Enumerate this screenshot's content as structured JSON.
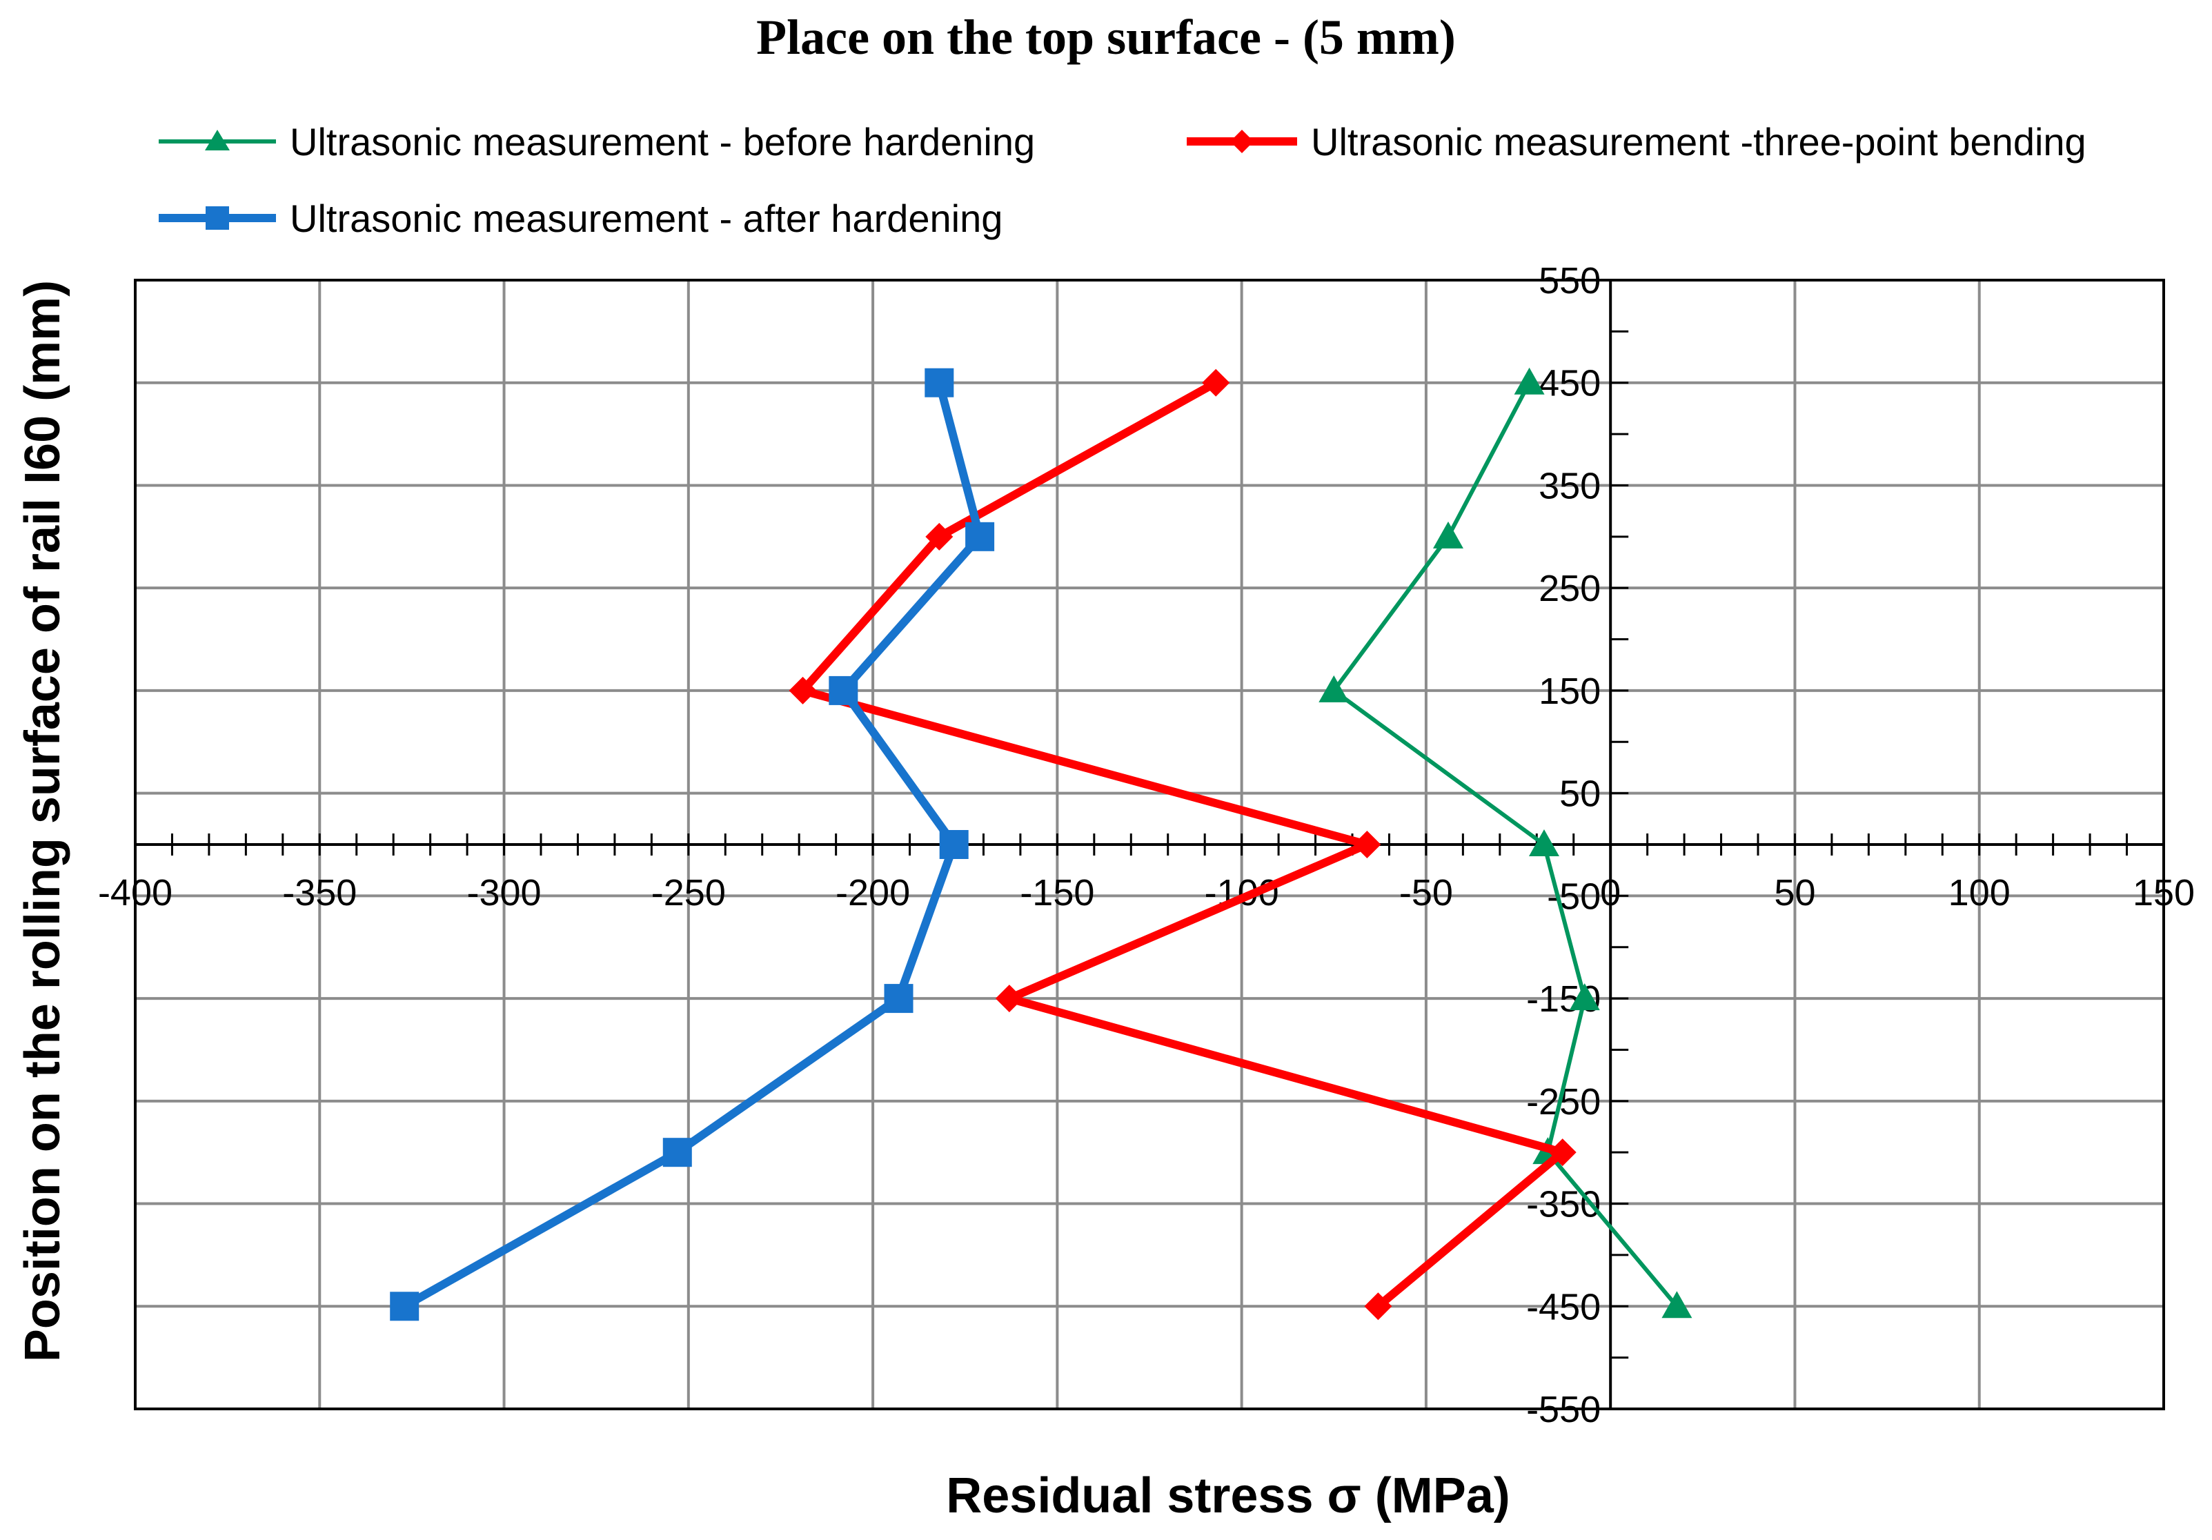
{
  "chart_data": {
    "type": "line",
    "title": "Place on the top surface - (5 mm)",
    "xlabel": "Residual stress  σ (MPa)",
    "ylabel": "Position on the rolling surface of rail I60 (mm)",
    "xlim": [
      -400,
      150
    ],
    "ylim": [
      -550,
      550
    ],
    "x_ticks": [
      -400,
      -350,
      -300,
      -250,
      -200,
      -150,
      -100,
      -50,
      0,
      50,
      100,
      150
    ],
    "y_ticks": [
      550,
      450,
      350,
      250,
      150,
      50,
      -50,
      -150,
      -250,
      -350,
      -450,
      -550
    ],
    "grid": true,
    "legend_position": "top",
    "series": [
      {
        "name": "Ultrasonic measurement - before hardening",
        "color": "#00965e",
        "marker": "triangle",
        "points": [
          [
            -22,
            450
          ],
          [
            -44,
            300
          ],
          [
            -75,
            150
          ],
          [
            -18,
            0
          ],
          [
            -7,
            -150
          ],
          [
            -17,
            -300
          ],
          [
            18,
            -450
          ]
        ]
      },
      {
        "name": "Ultrasonic measurement -three-point bending",
        "color": "#ff0000",
        "marker": "diamond",
        "points": [
          [
            -107,
            450
          ],
          [
            -182,
            300
          ],
          [
            -219,
            150
          ],
          [
            -66,
            0
          ],
          [
            -163,
            -150
          ],
          [
            -13,
            -300
          ],
          [
            -63,
            -450
          ]
        ]
      },
      {
        "name": "Ultrasonic measurement - after hardening",
        "color": "#1874cd",
        "marker": "square",
        "points": [
          [
            -182,
            450
          ],
          [
            -171,
            300
          ],
          [
            -208,
            150
          ],
          [
            -178,
            0
          ],
          [
            -193,
            -150
          ],
          [
            -253,
            -300
          ],
          [
            -327,
            -450
          ]
        ]
      }
    ]
  }
}
